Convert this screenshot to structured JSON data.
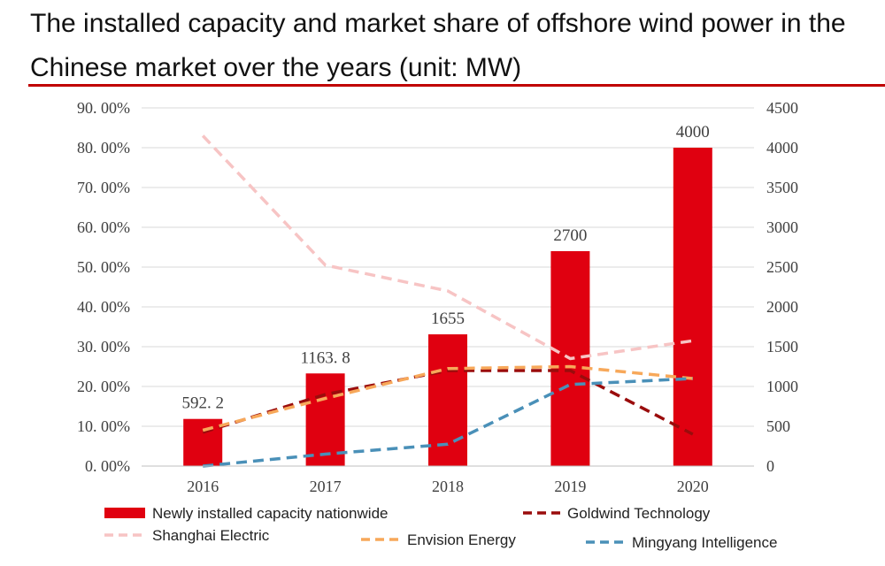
{
  "chart_data": {
    "type": "bar",
    "title": "The installed capacity and market share of offshore wind power in the Chinese market over the years (unit: MW)",
    "categories": [
      "2016",
      "2017",
      "2018",
      "2019",
      "2020"
    ],
    "bar_series": {
      "name": "Newly installed capacity nationwide",
      "values": [
        592.2,
        1163.8,
        1655,
        2700,
        4000
      ],
      "labels": [
        "592. 2",
        "1163. 8",
        "1655",
        "2700",
        "4000"
      ],
      "color": "#e00010"
    },
    "line_series": [
      {
        "name": "Goldwind Technology",
        "values": [
          8.5,
          18.0,
          24.0,
          24.0,
          8.0
        ],
        "color": "#9a0c0c"
      },
      {
        "name": "Shanghai Electric",
        "values": [
          83.0,
          50.5,
          44.0,
          27.0,
          31.5
        ],
        "color": "#f7c4c4"
      },
      {
        "name": "Envision Energy",
        "values": [
          9.0,
          17.0,
          24.5,
          25.0,
          22.0
        ],
        "color": "#f7a85a"
      },
      {
        "name": "Mingyang Intelligence",
        "values": [
          0.0,
          3.0,
          5.5,
          20.5,
          22.0
        ],
        "color": "#4a90b8"
      }
    ],
    "y_left": {
      "min": 0,
      "max": 90,
      "ticks": [
        "0. 00%",
        "10. 00%",
        "20. 00%",
        "30. 00%",
        "40. 00%",
        "50. 00%",
        "60. 00%",
        "70. 00%",
        "80. 00%",
        "90. 00%"
      ]
    },
    "y_right": {
      "min": 0,
      "max": 4500,
      "ticks": [
        "0",
        "500",
        "1000",
        "1500",
        "2000",
        "2500",
        "3000",
        "3500",
        "4000",
        "4500"
      ]
    },
    "grid": true,
    "legend_position": "bottom"
  }
}
